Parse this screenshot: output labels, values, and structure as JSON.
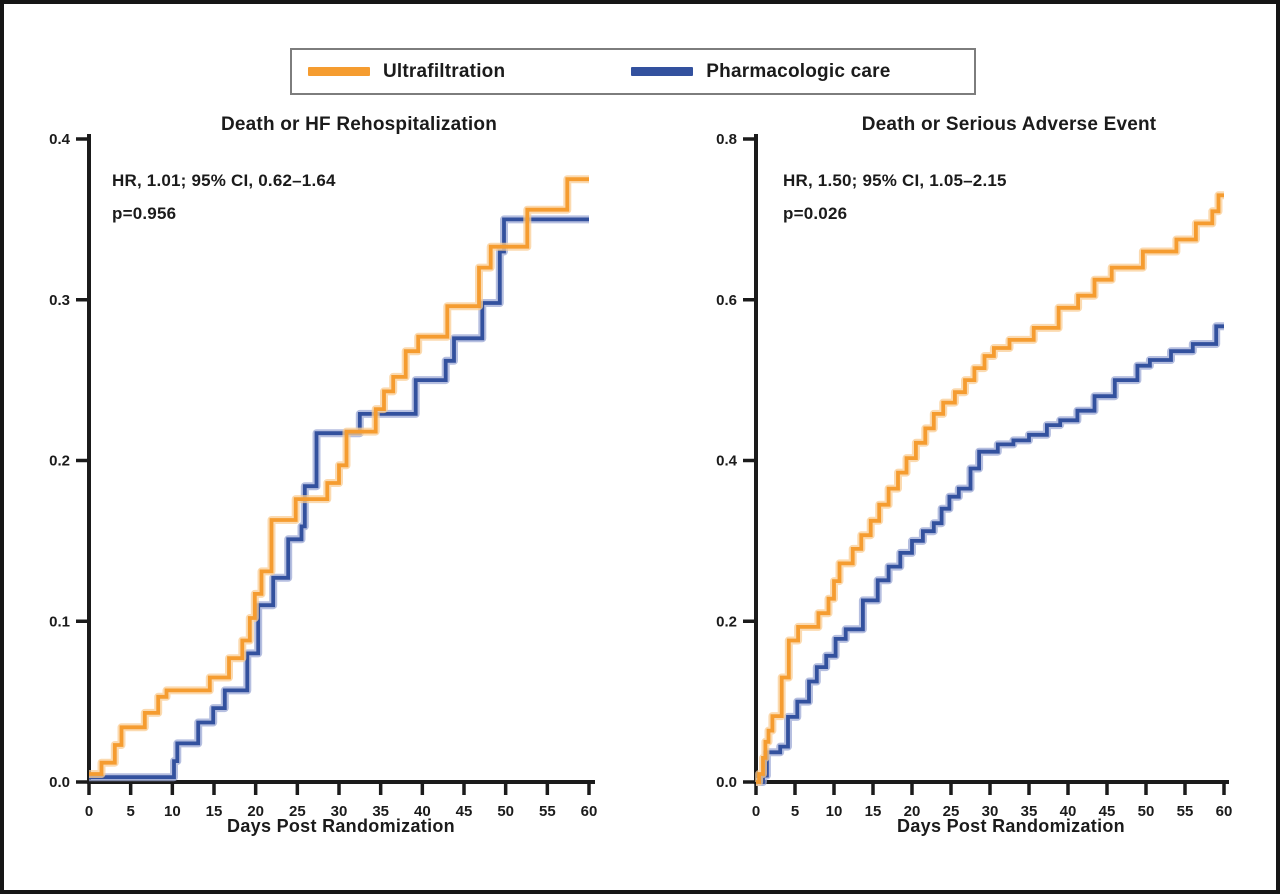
{
  "page": {
    "background": "#ffffff",
    "border_color": "#161616",
    "axis_color": "#1b1b1b"
  },
  "legend": {
    "items": [
      {
        "label": "Ultrafiltration",
        "color": "#F59C30",
        "halo": "#F9CE96"
      },
      {
        "label": "Pharmacologic care",
        "color": "#33519E",
        "halo": "#9DAAD6"
      }
    ]
  },
  "chart_data": [
    {
      "type": "line",
      "subtype": "step",
      "title": "Death or HF Rehospitalization",
      "hr_text": "HR, 1.01; 95% CI, 0.62–1.64",
      "p_text": "p=0.956",
      "xlabel": "Days Post Randomization",
      "ylabel": "",
      "xlim": [
        0,
        60
      ],
      "ylim": [
        0,
        0.4
      ],
      "xticks": [
        0,
        5,
        10,
        15,
        20,
        25,
        30,
        35,
        40,
        45,
        50,
        55,
        60
      ],
      "yticks": [
        0.0,
        0.1,
        0.2,
        0.3,
        0.4
      ],
      "ytick_labels": [
        "0.0",
        "0.1",
        "0.2",
        "0.3",
        "0.4"
      ],
      "grid": false,
      "legend_position": "top-center-shared",
      "series": [
        {
          "name": "Ultrafiltration",
          "color": "#F59C30",
          "halo": "#F9CE96",
          "points": [
            [
              0,
              0.005
            ],
            [
              1.5,
              0.012
            ],
            [
              3.1,
              0.023
            ],
            [
              3.9,
              0.034
            ],
            [
              6.7,
              0.043
            ],
            [
              8.3,
              0.053
            ],
            [
              9.3,
              0.057
            ],
            [
              14.5,
              0.065
            ],
            [
              16.8,
              0.077
            ],
            [
              18.4,
              0.088
            ],
            [
              19.3,
              0.102
            ],
            [
              19.9,
              0.117
            ],
            [
              20.7,
              0.131
            ],
            [
              21.9,
              0.163
            ],
            [
              24.8,
              0.176
            ],
            [
              28.6,
              0.186
            ],
            [
              30,
              0.197
            ],
            [
              30.9,
              0.218
            ],
            [
              34.4,
              0.232
            ],
            [
              35.4,
              0.243
            ],
            [
              36.5,
              0.252
            ],
            [
              38,
              0.268
            ],
            [
              39.5,
              0.277
            ],
            [
              43,
              0.296
            ],
            [
              46.8,
              0.32
            ],
            [
              48.2,
              0.333
            ],
            [
              52.6,
              0.356
            ],
            [
              57.4,
              0.375
            ],
            [
              60,
              0.375
            ]
          ]
        },
        {
          "name": "Pharmacologic care",
          "color": "#33519E",
          "halo": "#9DAAD6",
          "points": [
            [
              0,
              0.003
            ],
            [
              10.2,
              0.013
            ],
            [
              10.6,
              0.024
            ],
            [
              13.1,
              0.037
            ],
            [
              14.9,
              0.046
            ],
            [
              16.3,
              0.057
            ],
            [
              19,
              0.08
            ],
            [
              20.3,
              0.11
            ],
            [
              22.1,
              0.127
            ],
            [
              23.9,
              0.151
            ],
            [
              25.5,
              0.159
            ],
            [
              25.9,
              0.184
            ],
            [
              27.3,
              0.217
            ],
            [
              32.5,
              0.229
            ],
            [
              39.2,
              0.25
            ],
            [
              42.8,
              0.262
            ],
            [
              43.8,
              0.276
            ],
            [
              47.2,
              0.298
            ],
            [
              49.3,
              0.33
            ],
            [
              49.8,
              0.35
            ],
            [
              60,
              0.35
            ]
          ]
        }
      ]
    },
    {
      "type": "line",
      "subtype": "step",
      "title": "Death or Serious Adverse Event",
      "hr_text": "HR, 1.50; 95% CI, 1.05–2.15",
      "p_text": "p=0.026",
      "xlabel": "Days Post Randomization",
      "ylabel": "",
      "xlim": [
        0,
        60
      ],
      "ylim": [
        0,
        0.8
      ],
      "xticks": [
        0,
        5,
        10,
        15,
        20,
        25,
        30,
        35,
        40,
        45,
        50,
        55,
        60
      ],
      "yticks": [
        0.0,
        0.2,
        0.4,
        0.6,
        0.8
      ],
      "ytick_labels": [
        "0.0",
        "0.2",
        "0.4",
        "0.6",
        "0.8"
      ],
      "grid": false,
      "legend_position": "top-center-shared",
      "series": [
        {
          "name": "Ultrafiltration",
          "color": "#F59C30",
          "halo": "#F9CE96",
          "points": [
            [
              0,
              0
            ],
            [
              0.4,
              0.01
            ],
            [
              0.9,
              0.03
            ],
            [
              1.2,
              0.05
            ],
            [
              1.6,
              0.064
            ],
            [
              2.1,
              0.082
            ],
            [
              3.3,
              0.13
            ],
            [
              4.2,
              0.176
            ],
            [
              5.4,
              0.193
            ],
            [
              8,
              0.21
            ],
            [
              9.3,
              0.228
            ],
            [
              10,
              0.25
            ],
            [
              10.7,
              0.272
            ],
            [
              12.4,
              0.29
            ],
            [
              13.5,
              0.307
            ],
            [
              14.7,
              0.325
            ],
            [
              15.8,
              0.345
            ],
            [
              17,
              0.365
            ],
            [
              18.2,
              0.385
            ],
            [
              19.3,
              0.403
            ],
            [
              20.5,
              0.422
            ],
            [
              21.7,
              0.44
            ],
            [
              22.8,
              0.458
            ],
            [
              24,
              0.472
            ],
            [
              25.5,
              0.485
            ],
            [
              26.8,
              0.5
            ],
            [
              28,
              0.515
            ],
            [
              29.3,
              0.53
            ],
            [
              30.5,
              0.54
            ],
            [
              32.5,
              0.55
            ],
            [
              35.6,
              0.565
            ],
            [
              38.8,
              0.59
            ],
            [
              41.3,
              0.605
            ],
            [
              43.4,
              0.625
            ],
            [
              45.6,
              0.64
            ],
            [
              49.6,
              0.66
            ],
            [
              53.9,
              0.675
            ],
            [
              56.4,
              0.695
            ],
            [
              58.5,
              0.71
            ],
            [
              59.3,
              0.73
            ],
            [
              60,
              0.73
            ]
          ]
        },
        {
          "name": "Pharmacologic care",
          "color": "#33519E",
          "halo": "#9DAAD6",
          "points": [
            [
              0,
              0
            ],
            [
              0.9,
              0.008
            ],
            [
              1.4,
              0.037
            ],
            [
              3.1,
              0.044
            ],
            [
              4.1,
              0.081
            ],
            [
              5.3,
              0.1
            ],
            [
              6.8,
              0.125
            ],
            [
              7.8,
              0.143
            ],
            [
              9,
              0.157
            ],
            [
              10.2,
              0.178
            ],
            [
              11.5,
              0.19
            ],
            [
              13.7,
              0.226
            ],
            [
              15.6,
              0.251
            ],
            [
              17,
              0.268
            ],
            [
              18.5,
              0.285
            ],
            [
              20,
              0.3
            ],
            [
              21.4,
              0.312
            ],
            [
              22.8,
              0.322
            ],
            [
              23.8,
              0.34
            ],
            [
              24.8,
              0.355
            ],
            [
              26,
              0.365
            ],
            [
              27.5,
              0.39
            ],
            [
              28.6,
              0.411
            ],
            [
              31,
              0.42
            ],
            [
              33,
              0.425
            ],
            [
              35,
              0.432
            ],
            [
              37.3,
              0.444
            ],
            [
              39,
              0.45
            ],
            [
              41.2,
              0.462
            ],
            [
              43.4,
              0.48
            ],
            [
              46,
              0.5
            ],
            [
              48.9,
              0.518
            ],
            [
              50.5,
              0.525
            ],
            [
              53.2,
              0.536
            ],
            [
              56,
              0.545
            ],
            [
              59,
              0.567
            ],
            [
              60,
              0.567
            ]
          ]
        }
      ]
    }
  ]
}
